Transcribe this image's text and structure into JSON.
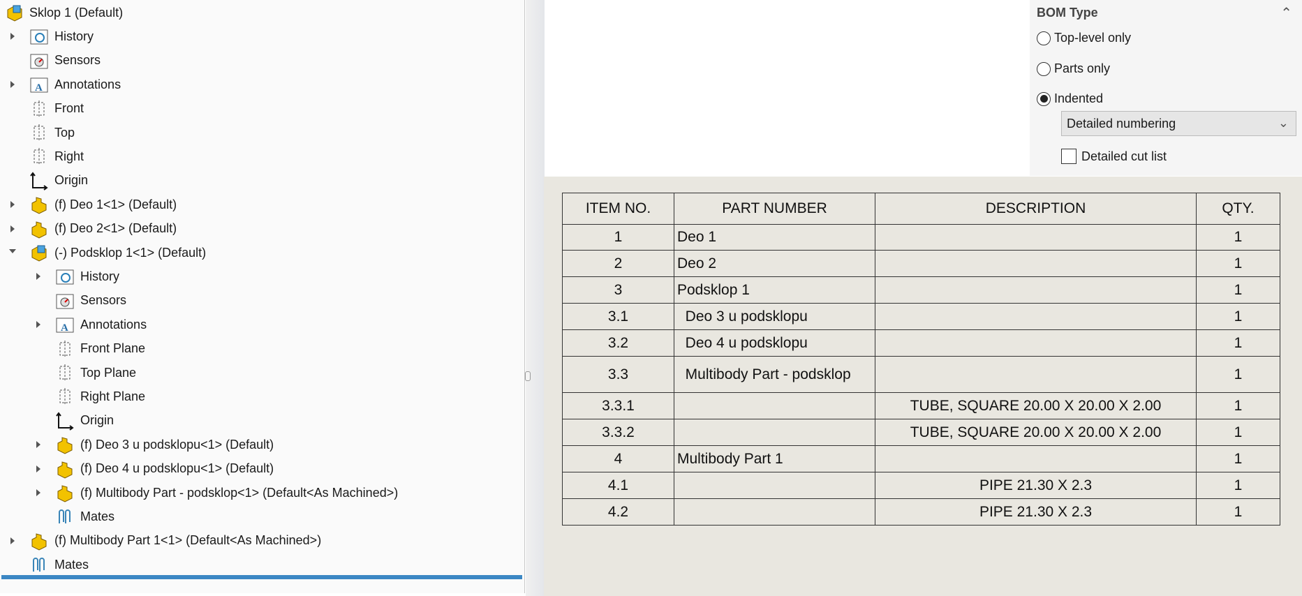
{
  "tree": [
    {
      "label": "Sklop 1  (Default)",
      "level": 0,
      "icon": "assembly-icon",
      "arrow": "none"
    },
    {
      "label": "History",
      "level": 1,
      "icon": "history-folder-icon",
      "arrow": "closed"
    },
    {
      "label": "Sensors",
      "level": 1,
      "icon": "sensors-folder-icon",
      "arrow": "none"
    },
    {
      "label": "Annotations",
      "level": 1,
      "icon": "annotations-folder-icon",
      "arrow": "closed"
    },
    {
      "label": "Front",
      "level": 1,
      "icon": "plane-icon",
      "arrow": "none"
    },
    {
      "label": "Top",
      "level": 1,
      "icon": "plane-icon",
      "arrow": "none"
    },
    {
      "label": "Right",
      "level": 1,
      "icon": "plane-icon",
      "arrow": "none"
    },
    {
      "label": "Origin",
      "level": 1,
      "icon": "origin-icon",
      "arrow": "none"
    },
    {
      "label": "(f) Deo 1<1> (Default)",
      "level": 1,
      "icon": "part-icon",
      "arrow": "closed"
    },
    {
      "label": "(f) Deo 2<1> (Default)",
      "level": 1,
      "icon": "part-icon",
      "arrow": "closed"
    },
    {
      "label": "(-) Podsklop 1<1> (Default)",
      "level": 1,
      "icon": "assembly-icon",
      "arrow": "open"
    },
    {
      "label": "History",
      "level": 2,
      "icon": "history-folder-icon",
      "arrow": "closed"
    },
    {
      "label": "Sensors",
      "level": 2,
      "icon": "sensors-folder-icon",
      "arrow": "none"
    },
    {
      "label": "Annotations",
      "level": 2,
      "icon": "annotations-folder-icon",
      "arrow": "closed"
    },
    {
      "label": "Front Plane",
      "level": 2,
      "icon": "plane-icon",
      "arrow": "none"
    },
    {
      "label": "Top Plane",
      "level": 2,
      "icon": "plane-icon",
      "arrow": "none"
    },
    {
      "label": "Right Plane",
      "level": 2,
      "icon": "plane-icon",
      "arrow": "none"
    },
    {
      "label": "Origin",
      "level": 2,
      "icon": "origin-icon",
      "arrow": "none"
    },
    {
      "label": "(f) Deo 3 u podsklopu<1> (Default)",
      "level": 2,
      "icon": "part-icon",
      "arrow": "closed"
    },
    {
      "label": "(f) Deo 4 u podsklopu<1> (Default)",
      "level": 2,
      "icon": "part-icon",
      "arrow": "closed"
    },
    {
      "label": "(f) Multibody Part - podsklop<1> (Default<As Machined>)",
      "level": 2,
      "icon": "part-icon",
      "arrow": "closed"
    },
    {
      "label": "Mates",
      "level": 2,
      "icon": "mates-icon",
      "arrow": "none"
    },
    {
      "label": "(f) Multibody Part 1<1> (Default<As Machined>)",
      "level": 1,
      "icon": "part-icon",
      "arrow": "closed"
    },
    {
      "label": "Mates",
      "level": 1,
      "icon": "mates-icon",
      "arrow": "none"
    }
  ],
  "bom_type": {
    "title": "BOM Type",
    "options": [
      {
        "label": "Top-level only",
        "selected": false
      },
      {
        "label": "Parts only",
        "selected": false
      },
      {
        "label": "Indented",
        "selected": true
      }
    ],
    "numbering": "Detailed numbering",
    "cut_list_label": "Detailed cut list",
    "cut_list_checked": false
  },
  "table": {
    "headers": [
      "ITEM NO.",
      "PART NUMBER",
      "DESCRIPTION",
      "QTY."
    ],
    "rows": [
      [
        "1",
        "Deo 1",
        "",
        "1"
      ],
      [
        "2",
        "Deo 2",
        "",
        "1"
      ],
      [
        "3",
        "Podsklop 1",
        "",
        "1"
      ],
      [
        "3.1",
        "  Deo 3 u podsklopu",
        "",
        "1"
      ],
      [
        "3.2",
        "  Deo 4 u podsklopu",
        "",
        "1"
      ],
      [
        "3.3",
        "  Multibody Part - podsklop",
        "",
        "1"
      ],
      [
        "3.3.1",
        "",
        "TUBE, SQUARE 20.00 X 20.00 X 2.00",
        "1"
      ],
      [
        "3.3.2",
        "",
        "TUBE, SQUARE 20.00 X 20.00 X 2.00",
        "1"
      ],
      [
        "4",
        "Multibody Part 1",
        "",
        "1"
      ],
      [
        "4.1",
        "",
        "PIPE 21.30 X 2.3",
        "1"
      ],
      [
        "4.2",
        "",
        "PIPE 21.30 X 2.3",
        "1"
      ]
    ]
  }
}
